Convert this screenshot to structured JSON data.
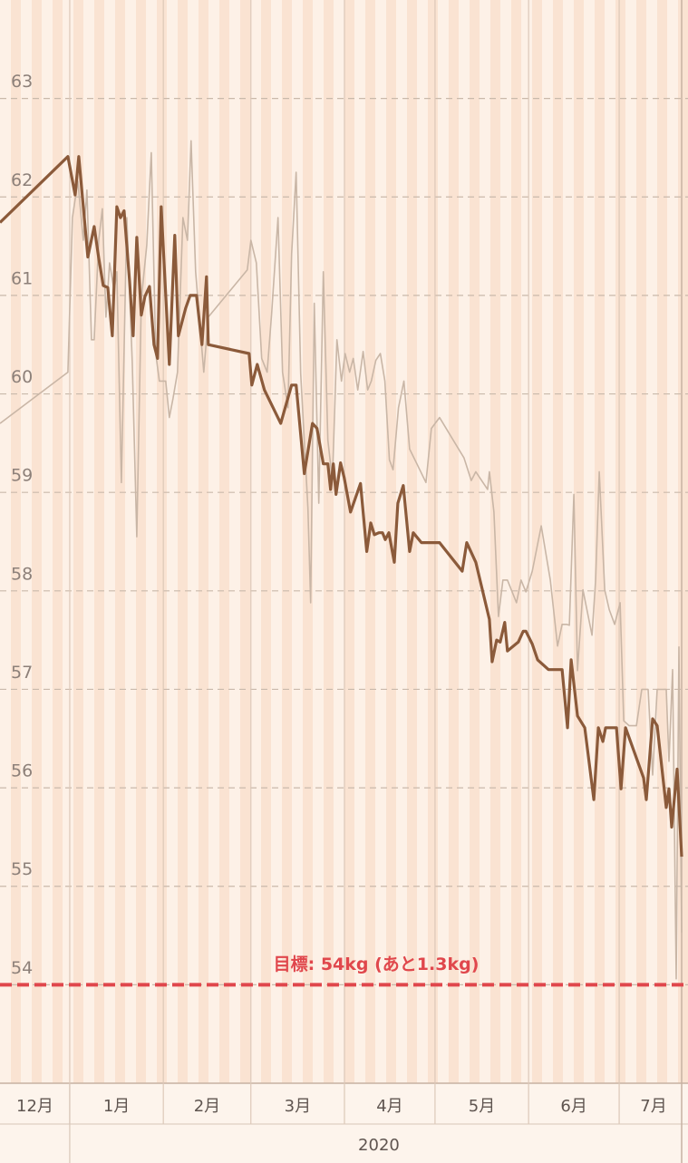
{
  "chart_data": {
    "type": "line",
    "grid": true,
    "ylim": [
      53,
      64
    ],
    "yticks": [
      54,
      55,
      56,
      57,
      58,
      59,
      60,
      61,
      62,
      63
    ],
    "xlim": [
      -23.1,
      204.8
    ],
    "xticks": [
      {
        "value": -31,
        "label": "12月"
      },
      {
        "value": 0,
        "label": "1月"
      },
      {
        "value": 31,
        "label": "2月"
      },
      {
        "value": 60,
        "label": "3月"
      },
      {
        "value": 91,
        "label": "4月"
      },
      {
        "value": 121,
        "label": "5月"
      },
      {
        "value": 152,
        "label": "6月"
      },
      {
        "value": 182,
        "label": "7月"
      }
    ],
    "year_label": "2020",
    "target": {
      "value": 54,
      "label": "目標: 54kg (あと1.3kg)",
      "color": "#e0474c"
    },
    "series": [
      {
        "color": "#c9b6a6",
        "x": [
          -23.1,
          -0.6,
          0.9,
          2.7,
          4.5,
          5.7,
          7.2,
          8.1,
          9.6,
          10.8,
          12.0,
          13.2,
          14.7,
          15.6,
          17.1,
          18.9,
          20.7,
          22.2,
          23.7,
          25.5,
          27.0,
          28.5,
          29.7,
          31.8,
          33.0,
          34.2,
          35.7,
          37.5,
          39.0,
          40.2,
          41.7,
          44.4,
          45.9,
          58.8,
          60.0,
          61.8,
          63.6,
          65.4,
          66.9,
          69.0,
          70.5,
          72.3,
          73.5,
          75.0,
          76.5,
          78.9,
          79.8,
          81.0,
          82.5,
          84.0,
          85.5,
          87.0,
          88.5,
          90.0,
          91.2,
          92.7,
          93.9,
          95.4,
          97.2,
          98.7,
          99.9,
          101.4,
          102.9,
          104.4,
          105.9,
          107.1,
          108.9,
          110.7,
          112.6,
          115.0,
          118.0,
          119.8,
          122.5,
          130.6,
          133.0,
          134.5,
          138.4,
          139.0,
          140.5,
          142.0,
          143.5,
          145.0,
          148.0,
          149.5,
          151.1,
          153.2,
          156.2,
          159.2,
          161.6,
          163.1,
          164.6,
          165.5,
          167.0,
          168.2,
          170.0,
          171.5,
          173.0,
          174.2,
          175.4,
          177.2,
          178.7,
          180.5,
          182.3,
          183.5,
          185.3,
          187.7,
          189.5,
          191.6,
          193.1,
          194.6,
          197.6,
          198.5,
          199.7,
          200.9,
          201.8,
          202.7
        ],
        "values": [
          59.7,
          60.22,
          61.79,
          62.16,
          61.56,
          62.07,
          60.55,
          60.55,
          61.56,
          61.88,
          60.78,
          61.33,
          61.05,
          61.24,
          59.1,
          61.79,
          60.32,
          58.55,
          60.96,
          61.51,
          62.45,
          60.41,
          60.13,
          60.13,
          59.76,
          59.95,
          60.22,
          61.79,
          61.56,
          62.57,
          61.24,
          60.22,
          60.78,
          61.26,
          61.56,
          61.33,
          60.36,
          60.22,
          60.82,
          61.79,
          60.22,
          59.86,
          61.42,
          62.25,
          60.21,
          58.84,
          57.88,
          60.92,
          58.89,
          61.24,
          59.53,
          59.12,
          60.55,
          60.13,
          60.41,
          60.22,
          60.36,
          60.04,
          60.43,
          60.04,
          60.13,
          60.34,
          60.41,
          60.13,
          59.33,
          59.23,
          59.86,
          60.13,
          59.44,
          59.29,
          59.1,
          59.65,
          59.76,
          59.35,
          59.12,
          59.21,
          59.03,
          59.21,
          58.8,
          57.74,
          58.11,
          58.11,
          57.88,
          58.11,
          57.99,
          58.2,
          58.66,
          58.11,
          57.44,
          57.66,
          57.66,
          57.65,
          58.98,
          57.19,
          58.01,
          57.78,
          57.55,
          58.11,
          59.21,
          58.01,
          57.81,
          57.66,
          57.88,
          56.68,
          56.63,
          56.63,
          57.0,
          57.0,
          56.13,
          57.0,
          57.0,
          56.27,
          57.2,
          54.06,
          57.43,
          54.53
        ]
      },
      {
        "color": "#8b5a3a",
        "x": [
          -23.1,
          -0.6,
          1.8,
          3.0,
          6.0,
          8.1,
          9.6,
          11.1,
          12.6,
          14.1,
          15.6,
          16.8,
          18.0,
          19.8,
          21.0,
          22.2,
          23.7,
          24.9,
          26.4,
          27.9,
          29.1,
          30.3,
          33.0,
          34.8,
          36.0,
          38.4,
          39.9,
          42.0,
          43.8,
          45.3,
          45.9,
          59.4,
          60.3,
          62.1,
          64.5,
          69.9,
          73.5,
          75.0,
          77.7,
          80.4,
          81.9,
          84.0,
          85.5,
          86.4,
          87.3,
          88.2,
          89.7,
          90.9,
          93.0,
          96.3,
          98.4,
          99.7,
          100.9,
          102.4,
          103.6,
          104.5,
          105.7,
          107.5,
          108.7,
          110.5,
          112.6,
          113.8,
          116.5,
          118.6,
          122.5,
          130.0,
          131.5,
          134.5,
          139.0,
          139.9,
          141.4,
          142.6,
          144.1,
          145.0,
          148.6,
          150.2,
          151.1,
          153.2,
          155.0,
          158.6,
          163.1,
          164.9,
          166.1,
          168.2,
          170.6,
          173.6,
          175.1,
          176.6,
          177.5,
          181.1,
          182.6,
          184.1,
          190.1,
          191.0,
          193.1,
          194.6,
          197.6,
          198.5,
          199.4,
          201.2,
          202.7
        ],
        "values": [
          61.74,
          62.41,
          62.02,
          62.41,
          61.39,
          61.7,
          61.38,
          61.1,
          61.08,
          60.59,
          61.9,
          61.79,
          61.86,
          61.15,
          60.59,
          61.59,
          60.8,
          60.99,
          61.09,
          60.5,
          60.36,
          61.9,
          60.3,
          61.61,
          60.59,
          60.87,
          61.0,
          61.0,
          60.5,
          61.19,
          60.5,
          60.41,
          60.09,
          60.3,
          60.04,
          59.7,
          60.09,
          60.09,
          59.19,
          59.7,
          59.65,
          59.29,
          59.29,
          59.03,
          59.29,
          58.98,
          59.3,
          59.15,
          58.8,
          59.09,
          58.4,
          58.69,
          58.57,
          58.59,
          58.59,
          58.52,
          58.59,
          58.29,
          58.89,
          59.07,
          58.4,
          58.59,
          58.49,
          58.49,
          58.49,
          58.2,
          58.49,
          58.29,
          57.71,
          57.28,
          57.5,
          57.48,
          57.68,
          57.39,
          57.48,
          57.59,
          57.59,
          57.46,
          57.3,
          57.2,
          57.2,
          56.61,
          57.3,
          56.73,
          56.61,
          55.88,
          56.61,
          56.47,
          56.61,
          56.61,
          55.99,
          56.61,
          56.1,
          55.88,
          56.7,
          56.63,
          55.8,
          55.99,
          55.6,
          56.19,
          55.3
        ]
      }
    ]
  }
}
